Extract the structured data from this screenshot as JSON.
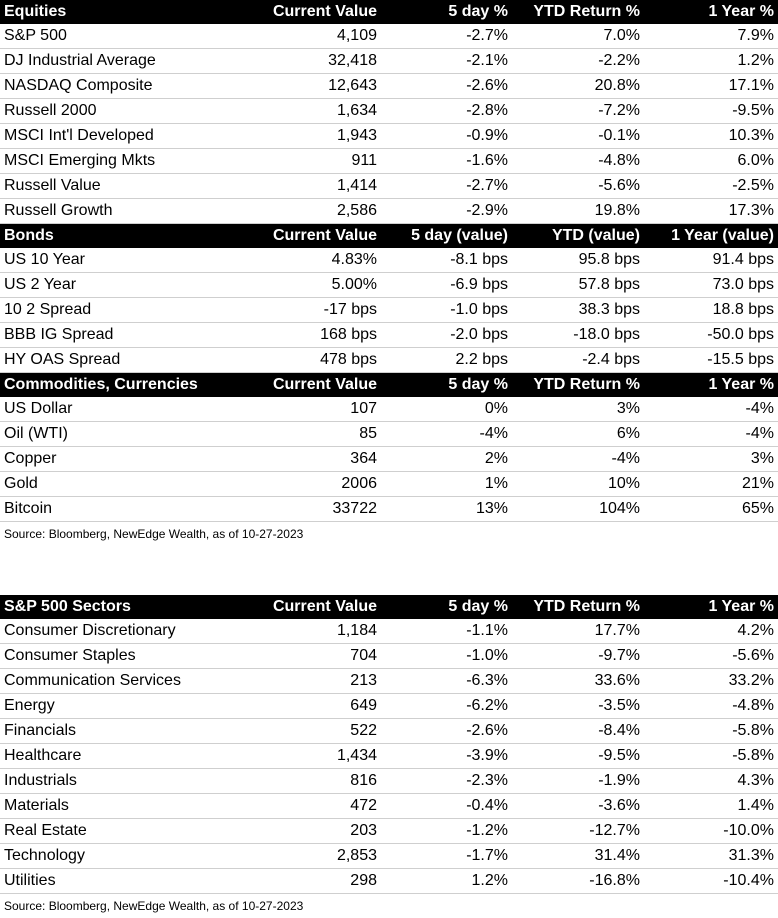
{
  "block1": {
    "sections": [
      {
        "headers": [
          "Equities",
          "Current Value",
          "5 day %",
          "YTD Return %",
          "1 Year %"
        ],
        "rows": [
          [
            "S&P 500",
            "4,109",
            "-2.7%",
            "7.0%",
            "7.9%"
          ],
          [
            "DJ Industrial Average",
            "32,418",
            "-2.1%",
            "-2.2%",
            "1.2%"
          ],
          [
            "NASDAQ Composite",
            "12,643",
            "-2.6%",
            "20.8%",
            "17.1%"
          ],
          [
            "Russell 2000",
            "1,634",
            "-2.8%",
            "-7.2%",
            "-9.5%"
          ],
          [
            "MSCI Int'l Developed",
            "1,943",
            "-0.9%",
            "-0.1%",
            "10.3%"
          ],
          [
            "MSCI Emerging Mkts",
            "911",
            "-1.6%",
            "-4.8%",
            "6.0%"
          ],
          [
            "Russell Value",
            "1,414",
            "-2.7%",
            "-5.6%",
            "-2.5%"
          ],
          [
            "Russell Growth",
            "2,586",
            "-2.9%",
            "19.8%",
            "17.3%"
          ]
        ]
      },
      {
        "headers": [
          "Bonds",
          "Current Value",
          "5 day (value)",
          "YTD (value)",
          "1 Year (value)"
        ],
        "rows": [
          [
            "US 10 Year",
            "4.83%",
            "-8.1 bps",
            "95.8 bps",
            "91.4 bps"
          ],
          [
            "US 2 Year",
            "5.00%",
            "-6.9 bps",
            "57.8 bps",
            "73.0 bps"
          ],
          [
            "10 2 Spread",
            "-17 bps",
            "-1.0 bps",
            "38.3 bps",
            "18.8 bps"
          ],
          [
            "BBB IG Spread",
            "168 bps",
            "-2.0 bps",
            "-18.0 bps",
            "-50.0 bps"
          ],
          [
            "HY OAS Spread",
            "478 bps",
            "2.2 bps",
            "-2.4 bps",
            "-15.5 bps"
          ]
        ]
      },
      {
        "headers": [
          "Commodities, Currencies",
          "Current Value",
          "5 day %",
          "YTD Return %",
          "1 Year %"
        ],
        "rows": [
          [
            "US Dollar",
            "107",
            "0%",
            "3%",
            "-4%"
          ],
          [
            "Oil (WTI)",
            "85",
            "-4%",
            "6%",
            "-4%"
          ],
          [
            "Copper",
            "364",
            "2%",
            "-4%",
            "3%"
          ],
          [
            "Gold",
            "2006",
            "1%",
            "10%",
            "21%"
          ],
          [
            "Bitcoin",
            "33722",
            "13%",
            "104%",
            "65%"
          ]
        ]
      }
    ],
    "source": "Source: Bloomberg, NewEdge Wealth, as of 10-27-2023"
  },
  "block2": {
    "sections": [
      {
        "headers": [
          "S&P 500 Sectors",
          "Current Value",
          "5 day %",
          "YTD Return %",
          "1 Year %"
        ],
        "rows": [
          [
            "Consumer Discretionary",
            "1,184",
            "-1.1%",
            "17.7%",
            "4.2%"
          ],
          [
            "Consumer Staples",
            "704",
            "-1.0%",
            "-9.7%",
            "-5.6%"
          ],
          [
            "Communication Services",
            "213",
            "-6.3%",
            "33.6%",
            "33.2%"
          ],
          [
            "Energy",
            "649",
            "-6.2%",
            "-3.5%",
            "-4.8%"
          ],
          [
            "Financials",
            "522",
            "-2.6%",
            "-8.4%",
            "-5.8%"
          ],
          [
            "Healthcare",
            "1,434",
            "-3.9%",
            "-9.5%",
            "-5.8%"
          ],
          [
            "Industrials",
            "816",
            "-2.3%",
            "-1.9%",
            "4.3%"
          ],
          [
            "Materials",
            "472",
            "-0.4%",
            "-3.6%",
            "1.4%"
          ],
          [
            "Real Estate",
            "203",
            "-1.2%",
            "-12.7%",
            "-10.0%"
          ],
          [
            "Technology",
            "2,853",
            "-1.7%",
            "31.4%",
            "31.3%"
          ],
          [
            "Utilities",
            "298",
            "1.2%",
            "-16.8%",
            "-10.4%"
          ]
        ]
      }
    ],
    "source": "Source: Bloomberg, NewEdge Wealth, as of 10-27-2023"
  }
}
